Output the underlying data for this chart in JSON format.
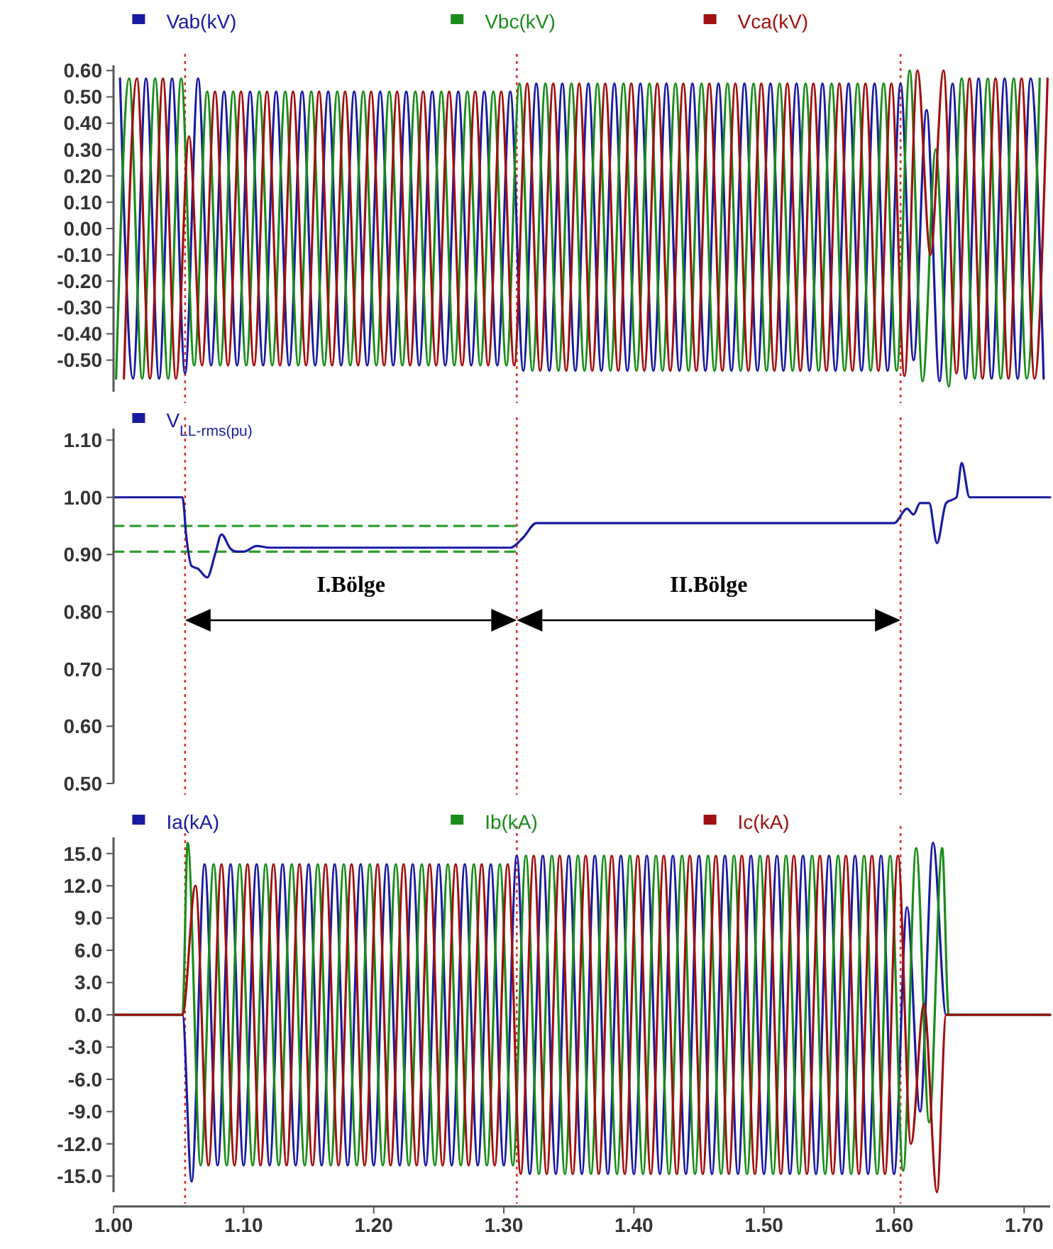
{
  "chart_data": [
    {
      "type": "line",
      "legend": "top",
      "tick_labels": "y",
      "xlim": [
        1.0,
        1.72
      ],
      "ylim": [
        -0.62,
        0.62
      ],
      "yticks": [
        {
          "value": -0.5,
          "label": "-0.50"
        },
        {
          "value": -0.4,
          "label": "-0.40"
        },
        {
          "value": -0.3,
          "label": "-0.30"
        },
        {
          "value": -0.2,
          "label": "-0.20"
        },
        {
          "value": -0.1,
          "label": "-0.10"
        },
        {
          "value": 0,
          "label": "0.00"
        },
        {
          "value": 0.1,
          "label": "0.10"
        },
        {
          "value": 0.2,
          "label": "0.20"
        },
        {
          "value": 0.3,
          "label": "0.30"
        },
        {
          "value": 0.4,
          "label": "0.40"
        },
        {
          "value": 0.5,
          "label": "0.50"
        },
        {
          "value": 0.6,
          "label": "0.60"
        }
      ],
      "ref_lines": [
        {
          "axis": "x",
          "value": 1.055,
          "color": "#e03030",
          "line_style": "dotted"
        },
        {
          "axis": "x",
          "value": 1.31,
          "color": "#e03030",
          "line_style": "dotted"
        },
        {
          "axis": "x",
          "value": 1.605,
          "color": "#e03030",
          "line_style": "dotted"
        }
      ],
      "series": [
        {
          "name": "Vab(kV)",
          "color": "#1a1aa0",
          "x": [
            1.005,
            1.015,
            1.025,
            1.035,
            1.045,
            1.055,
            1.065,
            1.075,
            1.085,
            1.095,
            1.105,
            1.115,
            1.125,
            1.135,
            1.145,
            1.155,
            1.165,
            1.175,
            1.185,
            1.195,
            1.205,
            1.215,
            1.225,
            1.235,
            1.245,
            1.255,
            1.265,
            1.275,
            1.285,
            1.295,
            1.305,
            1.315,
            1.325,
            1.335,
            1.345,
            1.355,
            1.365,
            1.375,
            1.385,
            1.395,
            1.405,
            1.415,
            1.425,
            1.435,
            1.445,
            1.455,
            1.465,
            1.475,
            1.485,
            1.495,
            1.505,
            1.515,
            1.525,
            1.535,
            1.545,
            1.555,
            1.565,
            1.575,
            1.585,
            1.595,
            1.605,
            1.615,
            1.625,
            1.635,
            1.645,
            1.655,
            1.665,
            1.675,
            1.685,
            1.695,
            1.705,
            1.715
          ],
          "values": [
            0.57,
            -0.57,
            0.57,
            -0.57,
            0.57,
            -0.55,
            0.57,
            -0.52,
            0.52,
            -0.52,
            0.52,
            -0.52,
            0.52,
            -0.52,
            0.52,
            -0.52,
            0.52,
            -0.52,
            0.52,
            -0.52,
            0.52,
            -0.52,
            0.52,
            -0.52,
            0.52,
            -0.52,
            0.52,
            -0.52,
            0.52,
            -0.52,
            0.52,
            -0.54,
            0.55,
            -0.54,
            0.55,
            -0.54,
            0.55,
            -0.54,
            0.55,
            -0.54,
            0.55,
            -0.54,
            0.55,
            -0.54,
            0.55,
            -0.54,
            0.55,
            -0.54,
            0.55,
            -0.54,
            0.55,
            -0.54,
            0.55,
            -0.54,
            0.55,
            -0.54,
            0.55,
            -0.54,
            0.55,
            -0.54,
            0.55,
            -0.5,
            0.45,
            -0.58,
            0.55,
            -0.57,
            0.57,
            -0.57,
            0.57,
            -0.57,
            0.57,
            -0.57
          ]
        },
        {
          "name": "Vbc(kV)",
          "color": "#1a8c1a",
          "x": [
            1.002,
            1.012,
            1.022,
            1.032,
            1.042,
            1.052,
            1.062,
            1.072,
            1.082,
            1.092,
            1.102,
            1.112,
            1.122,
            1.132,
            1.142,
            1.152,
            1.162,
            1.172,
            1.182,
            1.192,
            1.202,
            1.212,
            1.222,
            1.232,
            1.242,
            1.252,
            1.262,
            1.272,
            1.282,
            1.292,
            1.302,
            1.312,
            1.322,
            1.332,
            1.342,
            1.352,
            1.362,
            1.372,
            1.382,
            1.392,
            1.402,
            1.412,
            1.422,
            1.432,
            1.442,
            1.452,
            1.462,
            1.472,
            1.482,
            1.492,
            1.502,
            1.512,
            1.522,
            1.532,
            1.542,
            1.552,
            1.562,
            1.572,
            1.582,
            1.592,
            1.602,
            1.612,
            1.622,
            1.632,
            1.642,
            1.652,
            1.662,
            1.672,
            1.682,
            1.692,
            1.702,
            1.712
          ],
          "values": [
            -0.57,
            0.57,
            -0.57,
            0.57,
            -0.57,
            0.57,
            -0.52,
            0.52,
            -0.52,
            0.52,
            -0.52,
            0.52,
            -0.52,
            0.52,
            -0.52,
            0.52,
            -0.52,
            0.52,
            -0.52,
            0.52,
            -0.52,
            0.52,
            -0.52,
            0.52,
            -0.52,
            0.52,
            -0.52,
            0.52,
            -0.52,
            0.52,
            -0.52,
            0.55,
            -0.54,
            0.55,
            -0.54,
            0.55,
            -0.54,
            0.55,
            -0.54,
            0.55,
            -0.54,
            0.55,
            -0.54,
            0.55,
            -0.54,
            0.55,
            -0.54,
            0.55,
            -0.54,
            0.55,
            -0.54,
            0.55,
            -0.54,
            0.55,
            -0.54,
            0.55,
            -0.54,
            0.55,
            -0.54,
            0.55,
            -0.54,
            0.6,
            -0.58,
            0.3,
            -0.6,
            0.57,
            -0.57,
            0.57,
            -0.57,
            0.57,
            -0.57,
            0.57
          ]
        },
        {
          "name": "Vca(kV)",
          "color": "#a01010",
          "x": [
            1.008,
            1.018,
            1.028,
            1.038,
            1.048,
            1.058,
            1.068,
            1.078,
            1.088,
            1.098,
            1.108,
            1.118,
            1.128,
            1.138,
            1.148,
            1.158,
            1.168,
            1.178,
            1.188,
            1.198,
            1.208,
            1.218,
            1.228,
            1.238,
            1.248,
            1.258,
            1.268,
            1.278,
            1.288,
            1.298,
            1.308,
            1.318,
            1.328,
            1.338,
            1.348,
            1.358,
            1.368,
            1.378,
            1.388,
            1.398,
            1.408,
            1.418,
            1.428,
            1.438,
            1.448,
            1.458,
            1.468,
            1.478,
            1.488,
            1.498,
            1.508,
            1.518,
            1.528,
            1.538,
            1.548,
            1.558,
            1.568,
            1.578,
            1.588,
            1.598,
            1.608,
            1.618,
            1.628,
            1.638,
            1.648,
            1.658,
            1.668,
            1.678,
            1.688,
            1.698,
            1.708,
            1.718
          ],
          "values": [
            -0.57,
            0.57,
            -0.57,
            0.57,
            -0.57,
            0.35,
            -0.52,
            0.52,
            -0.52,
            0.52,
            -0.52,
            0.52,
            -0.52,
            0.52,
            -0.52,
            0.52,
            -0.52,
            0.52,
            -0.52,
            0.52,
            -0.52,
            0.52,
            -0.52,
            0.52,
            -0.52,
            0.52,
            -0.52,
            0.52,
            -0.52,
            0.52,
            -0.52,
            0.55,
            -0.54,
            0.55,
            -0.54,
            0.55,
            -0.54,
            0.55,
            -0.54,
            0.55,
            -0.54,
            0.55,
            -0.54,
            0.55,
            -0.54,
            0.55,
            -0.54,
            0.55,
            -0.54,
            0.55,
            -0.54,
            0.55,
            -0.54,
            0.55,
            -0.54,
            0.55,
            -0.54,
            0.55,
            -0.54,
            0.55,
            -0.56,
            0.6,
            -0.1,
            0.6,
            -0.55,
            0.57,
            -0.57,
            0.57,
            -0.57,
            0.57,
            -0.57,
            0.57
          ]
        }
      ]
    },
    {
      "type": "line",
      "legend": "top",
      "tick_labels": "y",
      "xlim": [
        1.0,
        1.72
      ],
      "ylim": [
        0.5,
        1.12
      ],
      "yticks": [
        {
          "value": 0.5,
          "label": "0.50"
        },
        {
          "value": 0.6,
          "label": "0.60"
        },
        {
          "value": 0.7,
          "label": "0.70"
        },
        {
          "value": 0.8,
          "label": "0.80"
        },
        {
          "value": 0.9,
          "label": "0.90"
        },
        {
          "value": 1.0,
          "label": "1.00"
        },
        {
          "value": 1.1,
          "label": "1.10"
        }
      ],
      "ref_lines": [
        {
          "axis": "x",
          "value": 1.055,
          "color": "#e03030",
          "line_style": "dotted"
        },
        {
          "axis": "x",
          "value": 1.31,
          "color": "#e03030",
          "line_style": "dotted"
        },
        {
          "axis": "x",
          "value": 1.605,
          "color": "#e03030",
          "line_style": "dotted"
        }
      ],
      "annotations": [
        "I.Bölge",
        "II.Bölge"
      ],
      "series": [
        {
          "type": "line",
          "color": "#2e9e2e",
          "line_style": "dashed",
          "x": [
            1.0,
            1.31
          ],
          "values": [
            0.95,
            0.95
          ]
        },
        {
          "type": "line",
          "color": "#2e9e2e",
          "line_style": "dashed",
          "x": [
            1.0,
            1.31
          ],
          "values": [
            0.905,
            0.905
          ]
        },
        {
          "name": "V$_{LL-rms(pu)}$",
          "color": "#1a1aa0",
          "x": [
            1.0,
            1.053,
            1.056,
            1.06,
            1.065,
            1.072,
            1.078,
            1.083,
            1.09,
            1.095,
            1.1,
            1.11,
            1.12,
            1.2,
            1.305,
            1.315,
            1.325,
            1.4,
            1.5,
            1.6,
            1.61,
            1.615,
            1.62,
            1.627,
            1.633,
            1.64,
            1.648,
            1.652,
            1.658,
            1.72
          ],
          "values": [
            1.0,
            1.0,
            0.93,
            0.88,
            0.875,
            0.86,
            0.9,
            0.935,
            0.91,
            0.905,
            0.905,
            0.915,
            0.912,
            0.912,
            0.912,
            0.93,
            0.955,
            0.955,
            0.955,
            0.955,
            0.98,
            0.97,
            0.99,
            0.99,
            0.92,
            0.99,
            1.0,
            1.06,
            1.0,
            1.0
          ]
        }
      ]
    },
    {
      "type": "line",
      "legend": "top",
      "xlim": [
        1.0,
        1.72
      ],
      "ylim": [
        -16.5,
        16.5
      ],
      "xticks": [
        {
          "value": 1.0,
          "label": "1.00"
        },
        {
          "value": 1.1,
          "label": "1.10"
        },
        {
          "value": 1.2,
          "label": "1.20"
        },
        {
          "value": 1.3,
          "label": "1.30"
        },
        {
          "value": 1.4,
          "label": "1.40"
        },
        {
          "value": 1.5,
          "label": "1.50"
        },
        {
          "value": 1.6,
          "label": "1.60"
        },
        {
          "value": 1.7,
          "label": "1.70"
        }
      ],
      "yticks": [
        {
          "value": -15,
          "label": "-15.0"
        },
        {
          "value": -12,
          "label": "-12.0"
        },
        {
          "value": -9,
          "label": "-9.0"
        },
        {
          "value": -6,
          "label": "-6.0"
        },
        {
          "value": -3,
          "label": "-3.0"
        },
        {
          "value": 0,
          "label": "0.0"
        },
        {
          "value": 3,
          "label": "3.0"
        },
        {
          "value": 6,
          "label": "6.0"
        },
        {
          "value": 9,
          "label": "9.0"
        },
        {
          "value": 12,
          "label": "12.0"
        },
        {
          "value": 15,
          "label": "15.0"
        }
      ],
      "ref_lines": [
        {
          "axis": "x",
          "value": 1.055,
          "color": "#e03030",
          "line_style": "dotted"
        },
        {
          "axis": "x",
          "value": 1.31,
          "color": "#e03030",
          "line_style": "dotted"
        },
        {
          "axis": "x",
          "value": 1.605,
          "color": "#e03030",
          "line_style": "dotted"
        }
      ],
      "series": [
        {
          "name": "Ia(kA)",
          "color": "#1a1aa0",
          "x": [
            1.0,
            1.053,
            1.06,
            1.07,
            1.08,
            1.09,
            1.1,
            1.11,
            1.12,
            1.13,
            1.14,
            1.15,
            1.16,
            1.17,
            1.18,
            1.19,
            1.2,
            1.21,
            1.22,
            1.23,
            1.24,
            1.25,
            1.26,
            1.27,
            1.28,
            1.29,
            1.3,
            1.31,
            1.32,
            1.33,
            1.34,
            1.35,
            1.36,
            1.37,
            1.38,
            1.39,
            1.4,
            1.41,
            1.42,
            1.43,
            1.44,
            1.45,
            1.46,
            1.47,
            1.48,
            1.49,
            1.5,
            1.51,
            1.52,
            1.53,
            1.54,
            1.55,
            1.56,
            1.57,
            1.58,
            1.59,
            1.6,
            1.61,
            1.62,
            1.63,
            1.64,
            1.72
          ],
          "values": [
            0,
            0,
            -15.5,
            14,
            -14,
            14,
            -14,
            14,
            -14,
            14,
            -14,
            14,
            -14,
            14,
            -14,
            14,
            -14,
            14,
            -14,
            14,
            -14,
            14,
            -14,
            14,
            -14,
            14,
            -14,
            14.8,
            -14.8,
            14.8,
            -14.8,
            14.8,
            -14.8,
            14.8,
            -14.8,
            14.8,
            -14.8,
            14.8,
            -14.8,
            14.8,
            -14.8,
            14.8,
            -14.8,
            14.8,
            -14.8,
            14.8,
            -14.8,
            14.8,
            -14.8,
            14.8,
            -14.8,
            14.8,
            -14.8,
            14.8,
            -14.8,
            14.8,
            -14.8,
            10,
            -9,
            16,
            0,
            0
          ]
        },
        {
          "name": "Ib(kA)",
          "color": "#1a8c1a",
          "x": [
            1.0,
            1.053,
            1.057,
            1.067,
            1.077,
            1.087,
            1.097,
            1.107,
            1.117,
            1.127,
            1.137,
            1.147,
            1.157,
            1.167,
            1.177,
            1.187,
            1.197,
            1.207,
            1.217,
            1.227,
            1.237,
            1.247,
            1.257,
            1.267,
            1.277,
            1.287,
            1.297,
            1.307,
            1.317,
            1.327,
            1.337,
            1.347,
            1.357,
            1.367,
            1.377,
            1.387,
            1.397,
            1.407,
            1.417,
            1.427,
            1.437,
            1.447,
            1.457,
            1.467,
            1.477,
            1.487,
            1.497,
            1.507,
            1.517,
            1.527,
            1.537,
            1.547,
            1.557,
            1.567,
            1.577,
            1.587,
            1.597,
            1.607,
            1.617,
            1.627,
            1.637,
            1.642,
            1.72
          ],
          "values": [
            0,
            0,
            16,
            -14,
            14,
            -14,
            14,
            -14,
            14,
            -14,
            14,
            -14,
            14,
            -14,
            14,
            -14,
            14,
            -14,
            14,
            -14,
            14,
            -14,
            14,
            -14,
            14,
            -14,
            14,
            -14,
            14.8,
            -14.8,
            14.8,
            -14.8,
            14.8,
            -14.8,
            14.8,
            -14.8,
            14.8,
            -14.8,
            14.8,
            -14.8,
            14.8,
            -14.8,
            14.8,
            -14.8,
            14.8,
            -14.8,
            14.8,
            -14.8,
            14.8,
            -14.8,
            14.8,
            -14.8,
            14.8,
            -14.8,
            14.8,
            -14.8,
            14.8,
            -14.5,
            15.5,
            -10,
            15.5,
            0,
            0
          ]
        },
        {
          "name": "Ic(kA)",
          "color": "#a01010",
          "x": [
            1.0,
            1.053,
            1.063,
            1.073,
            1.083,
            1.093,
            1.103,
            1.113,
            1.123,
            1.133,
            1.143,
            1.153,
            1.163,
            1.173,
            1.183,
            1.193,
            1.203,
            1.213,
            1.223,
            1.233,
            1.243,
            1.253,
            1.263,
            1.273,
            1.283,
            1.293,
            1.303,
            1.313,
            1.323,
            1.333,
            1.343,
            1.353,
            1.363,
            1.373,
            1.383,
            1.393,
            1.403,
            1.413,
            1.423,
            1.433,
            1.443,
            1.453,
            1.463,
            1.473,
            1.483,
            1.493,
            1.503,
            1.513,
            1.523,
            1.533,
            1.543,
            1.553,
            1.563,
            1.573,
            1.583,
            1.593,
            1.603,
            1.613,
            1.623,
            1.633,
            1.64,
            1.72
          ],
          "values": [
            0,
            0,
            12,
            -14,
            14,
            -14,
            14,
            -14,
            14,
            -14,
            14,
            -14,
            14,
            -14,
            14,
            -14,
            14,
            -14,
            14,
            -14,
            14,
            -14,
            14,
            -14,
            14,
            -14,
            14,
            -14.8,
            14.8,
            -14.8,
            14.8,
            -14.8,
            14.8,
            -14.8,
            14.8,
            -14.8,
            14.8,
            -14.8,
            14.8,
            -14.8,
            14.8,
            -14.8,
            14.8,
            -14.8,
            14.8,
            -14.8,
            14.8,
            -14.8,
            14.8,
            -14.8,
            14.8,
            -14.8,
            14.8,
            -14.8,
            14.8,
            -14.8,
            14.8,
            -12,
            1,
            -16.5,
            0,
            0
          ]
        }
      ]
    }
  ]
}
